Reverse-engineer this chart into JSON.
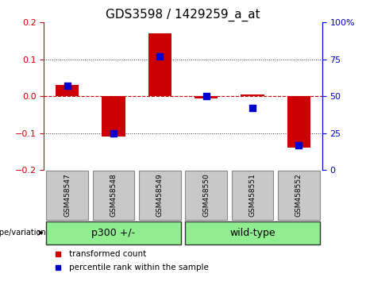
{
  "title": "GDS3598 / 1429259_a_at",
  "samples": [
    "GSM458547",
    "GSM458548",
    "GSM458549",
    "GSM458550",
    "GSM458551",
    "GSM458552"
  ],
  "red_values": [
    0.03,
    -0.11,
    0.17,
    -0.005,
    0.005,
    -0.14
  ],
  "blue_values_pct": [
    57,
    25,
    77,
    50,
    42,
    17
  ],
  "ylim_left": [
    -0.2,
    0.2
  ],
  "ylim_right": [
    0,
    100
  ],
  "yticks_left": [
    -0.2,
    -0.1,
    0.0,
    0.1,
    0.2
  ],
  "yticks_right": [
    0,
    25,
    50,
    75,
    100
  ],
  "ytick_labels_right": [
    "0",
    "25",
    "50",
    "75",
    "100%"
  ],
  "groups": [
    {
      "label": "p300 +/-",
      "samples": [
        0,
        1,
        2
      ],
      "color": "#90EE90"
    },
    {
      "label": "wild-type",
      "samples": [
        3,
        4,
        5
      ],
      "color": "#90EE90"
    }
  ],
  "group_label_prefix": "genotype/variation",
  "red_color": "#CC0000",
  "blue_color": "#0000CC",
  "bar_width": 0.5,
  "hline_color": "#CC0000",
  "dotted_color": "#333333",
  "sample_box_color": "#C8C8C8",
  "bg_color": "#FFFFFF",
  "plot_bg_color": "#FFFFFF",
  "legend_red_label": "transformed count",
  "legend_blue_label": "percentile rank within the sample",
  "title_fontsize": 11,
  "tick_fontsize": 8,
  "label_fontsize": 8,
  "group_fontsize": 9
}
